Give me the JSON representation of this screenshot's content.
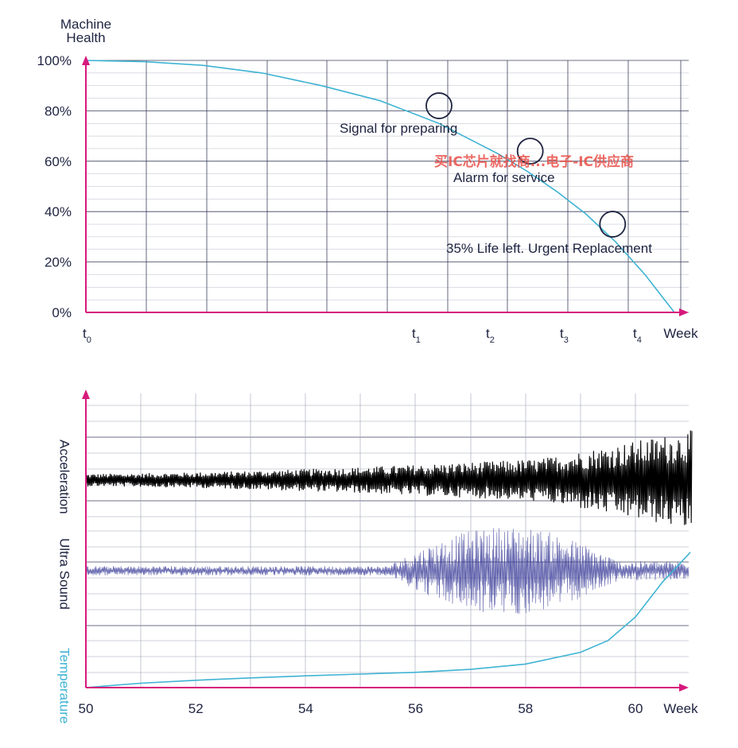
{
  "colors": {
    "axis": "#d6197c",
    "grid": "#1d2340",
    "health_curve": "#3fb3d3",
    "acceleration": "#000000",
    "ultrasound": "#3d3f9a",
    "temperature": "#3fb3d3",
    "watermark": "#e8504a"
  },
  "watermark": "买IC芯片就找商...电子-IC供应商",
  "chart_data": [
    {
      "type": "line",
      "ylabel": "Machine Health",
      "xlabel": "Week",
      "y_ticks": [
        "100%",
        "80%",
        "60%",
        "40%",
        "20%",
        "0%"
      ],
      "x_ticks": [
        {
          "main": "t",
          "sub": "0"
        },
        {
          "main": "t",
          "sub": "1"
        },
        {
          "main": "t",
          "sub": "2"
        },
        {
          "main": "t",
          "sub": "3"
        },
        {
          "main": "t",
          "sub": "4"
        }
      ],
      "ylim": [
        0,
        100
      ],
      "series": [
        {
          "x": [
            0,
            10,
            20,
            30,
            40,
            50,
            60,
            70,
            75,
            80,
            85,
            90,
            95,
            98,
            100
          ],
          "y": [
            100,
            99.5,
            98,
            95,
            90,
            84,
            75,
            63,
            56,
            48,
            39,
            28,
            15,
            6,
            0
          ]
        }
      ],
      "annotations": [
        {
          "text": "Signal for preparing",
          "x": 60,
          "y": 82
        },
        {
          "text": "Alarm for service",
          "x": 75.5,
          "y": 64
        },
        {
          "text": "35% Life left. Urgent Replacement",
          "x": 89.5,
          "y": 35
        }
      ]
    },
    {
      "type": "line",
      "xlabel": "Week",
      "x_ticks": [
        "50",
        "52",
        "54",
        "56",
        "58",
        "60"
      ],
      "xlim": [
        50,
        61
      ],
      "series": [
        {
          "name": "Acceleration",
          "kind": "vibration",
          "baseline": 0.66,
          "amp_start": 0.04,
          "amp_end": 0.22
        },
        {
          "name": "Ultra Sound",
          "kind": "noise",
          "baseline": 0.4,
          "amp_start": 0.03,
          "amp_end": 0.16
        },
        {
          "name": "Temperature",
          "kind": "line",
          "x": [
            50,
            51,
            52,
            53,
            54,
            55,
            56,
            57,
            58,
            59,
            59.5,
            60,
            60.5,
            61
          ],
          "y": [
            0,
            0.015,
            0.025,
            0.033,
            0.04,
            0.046,
            0.052,
            0.062,
            0.08,
            0.12,
            0.16,
            0.24,
            0.36,
            0.46
          ]
        }
      ]
    }
  ]
}
